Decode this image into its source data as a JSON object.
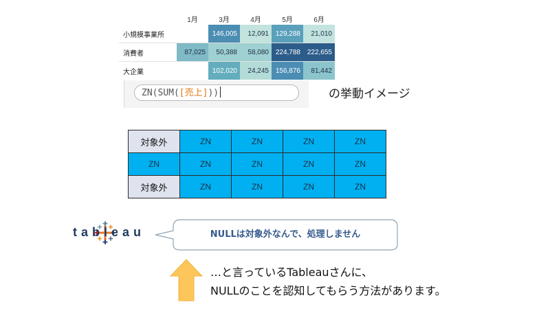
{
  "heatmap": {
    "columns": [
      "",
      "1月",
      "3月",
      "4月",
      "5月",
      "6月"
    ],
    "rows": [
      {
        "label": "小規模事業所",
        "values": [
          "",
          "146,005",
          "12,091",
          "129,288",
          "21,010"
        ]
      },
      {
        "label": "消費者",
        "values": [
          "87,025",
          "50,388",
          "58,080",
          "224,788",
          "222,655"
        ]
      },
      {
        "label": "大企業",
        "values": [
          "",
          "102,020",
          "24,245",
          "156,876",
          "81,442"
        ]
      }
    ],
    "colors": {
      "dark_blue": "#2b5c8a",
      "mid_blue": "#4c8db3",
      "teal": "#63adbe",
      "light_teal": "#9fd0d2",
      "pale": "#c2e3de"
    }
  },
  "calc": {
    "fn_open": "ZN(SUM(",
    "field": "[売上]",
    "fn_close": "))"
  },
  "behavior_label": "の挙動イメージ",
  "grid": {
    "rows": [
      [
        "対象外",
        "ZN",
        "ZN",
        "ZN",
        "ZN"
      ],
      [
        "ZN",
        "ZN",
        "ZN",
        "ZN",
        "ZN"
      ],
      [
        "対象外",
        "ZN",
        "ZN",
        "ZN",
        "ZN"
      ]
    ],
    "colors": {
      "zn": "#00b0f0",
      "excluded": "#dfe3ee"
    }
  },
  "logo": {
    "word": "tableau"
  },
  "bubble": {
    "text": "NULLは対象外なんで、処理しません"
  },
  "caption": {
    "line1": "…と言っているTableauさんに、",
    "line2": "NULLのことを認知してもらう方法があります。"
  },
  "arrow": {
    "color": "#fdc65a",
    "direction": "up"
  }
}
